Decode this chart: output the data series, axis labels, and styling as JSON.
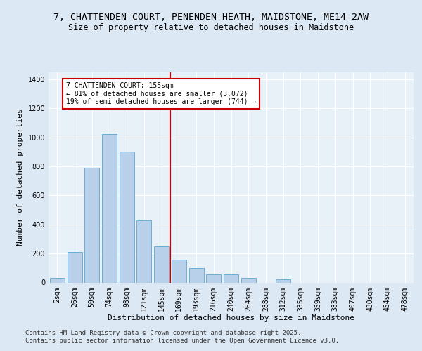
{
  "title_line1": "7, CHATTENDEN COURT, PENENDEN HEATH, MAIDSTONE, ME14 2AW",
  "title_line2": "Size of property relative to detached houses in Maidstone",
  "xlabel": "Distribution of detached houses by size in Maidstone",
  "ylabel": "Number of detached properties",
  "categories": [
    "2sqm",
    "26sqm",
    "50sqm",
    "74sqm",
    "98sqm",
    "121sqm",
    "145sqm",
    "169sqm",
    "193sqm",
    "216sqm",
    "240sqm",
    "264sqm",
    "288sqm",
    "312sqm",
    "335sqm",
    "359sqm",
    "383sqm",
    "407sqm",
    "430sqm",
    "454sqm",
    "478sqm"
  ],
  "values": [
    30,
    210,
    790,
    1020,
    900,
    430,
    250,
    155,
    100,
    55,
    55,
    30,
    0,
    20,
    0,
    0,
    0,
    0,
    0,
    0,
    0
  ],
  "bar_color": "#b8d0ea",
  "bar_edge_color": "#6baed6",
  "vline_color": "#cc0000",
  "annotation_text": "7 CHATTENDEN COURT: 155sqm\n← 81% of detached houses are smaller (3,072)\n19% of semi-detached houses are larger (744) →",
  "annotation_box_color": "#ffffff",
  "annotation_box_edge": "#cc0000",
  "ylim": [
    0,
    1450
  ],
  "yticks": [
    0,
    200,
    400,
    600,
    800,
    1000,
    1200,
    1400
  ],
  "bg_color": "#dde8f5",
  "plot_bg_color": "#e8f0f8",
  "footer_line1": "Contains HM Land Registry data © Crown copyright and database right 2025.",
  "footer_line2": "Contains public sector information licensed under the Open Government Licence v3.0.",
  "title_fontsize": 9.5,
  "subtitle_fontsize": 8.5,
  "tick_fontsize": 7,
  "label_fontsize": 8,
  "footer_fontsize": 6.5
}
